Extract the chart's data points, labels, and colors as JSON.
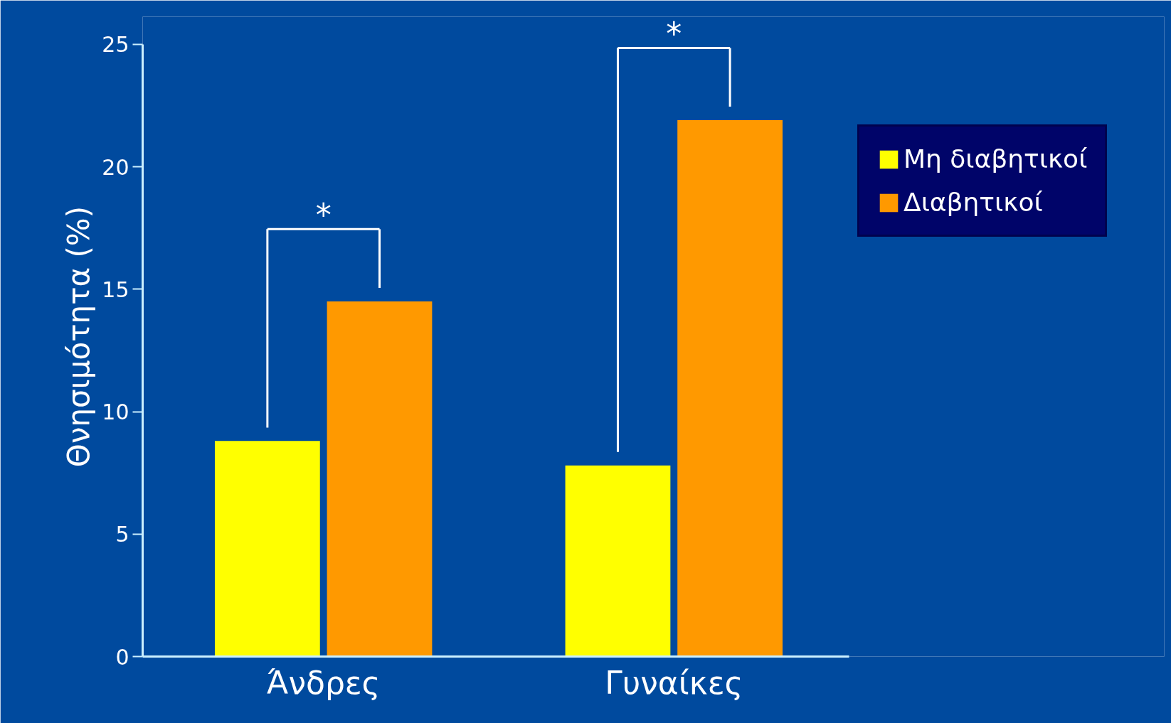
{
  "chart_data": {
    "type": "bar",
    "ylabel": "Θνησιμότητα (%)",
    "categories": [
      "Άνδρες",
      "Γυναίκες"
    ],
    "series": [
      {
        "name": "Μη διαβητικοί",
        "color": "#ffff00",
        "values": [
          8.8,
          7.8
        ]
      },
      {
        "name": "Διαβητικοί",
        "color": "#ff9900",
        "values": [
          14.5,
          21.9
        ]
      }
    ],
    "ylim": [
      0,
      25
    ],
    "yticks": [
      0,
      5,
      10,
      15,
      20,
      25
    ],
    "grid": false,
    "legend": "top right",
    "annotations": [
      "*",
      "*"
    ]
  }
}
